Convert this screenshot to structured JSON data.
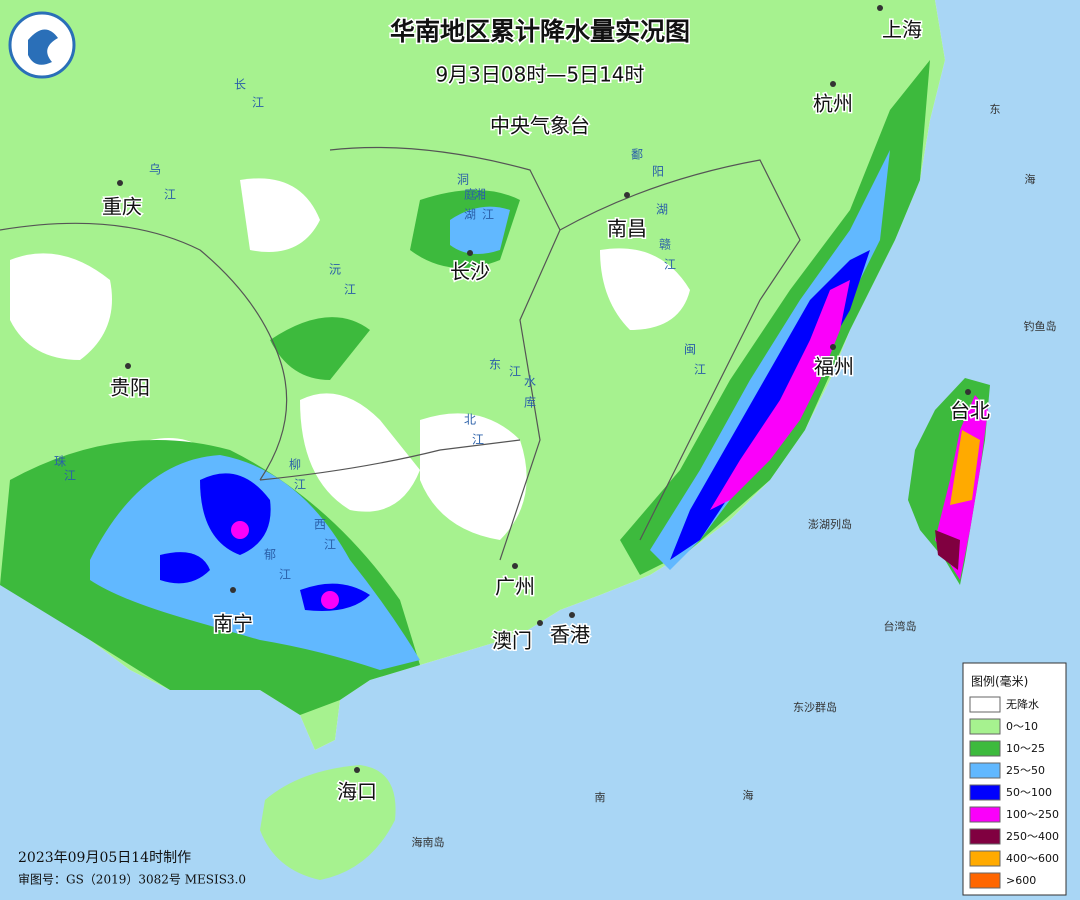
{
  "header": {
    "title": "华南地区累计降水量实况图",
    "subtitle": "9月3日08时—5日14时",
    "agency": "中央气象台"
  },
  "cities": [
    {
      "label": "上海"
    },
    {
      "label": "杭州"
    },
    {
      "label": "重庆"
    },
    {
      "label": "长沙"
    },
    {
      "label": "南昌"
    },
    {
      "label": "福州"
    },
    {
      "label": "贵阳"
    },
    {
      "label": "台北"
    },
    {
      "label": "广州"
    },
    {
      "label": "南宁"
    },
    {
      "label": "澳门"
    },
    {
      "label": "香港"
    },
    {
      "label": "海口"
    }
  ],
  "places": [
    {
      "label": "钓鱼岛"
    },
    {
      "label": "澎湖列岛"
    },
    {
      "label": "台湾岛"
    },
    {
      "label": "东沙群岛"
    },
    {
      "label": "海南岛"
    },
    {
      "label": "东"
    },
    {
      "label": "海"
    },
    {
      "label": "南"
    },
    {
      "label": "海"
    }
  ],
  "rivers": [
    {
      "label": "长"
    },
    {
      "label": "江"
    },
    {
      "label": "乌"
    },
    {
      "label": "江"
    },
    {
      "label": "沅"
    },
    {
      "label": "江"
    },
    {
      "label": "湘"
    },
    {
      "label": "江"
    },
    {
      "label": "赣"
    },
    {
      "label": "江"
    },
    {
      "label": "闽"
    },
    {
      "label": "江"
    },
    {
      "label": "西"
    },
    {
      "label": "江"
    },
    {
      "label": "郁"
    },
    {
      "label": "江"
    },
    {
      "label": "柳"
    },
    {
      "label": "江"
    },
    {
      "label": "鄱"
    },
    {
      "label": "阳"
    },
    {
      "label": "湖"
    },
    {
      "label": "洞"
    },
    {
      "label": "庭"
    },
    {
      "label": "湖"
    },
    {
      "label": "东"
    },
    {
      "label": "江"
    },
    {
      "label": "水"
    },
    {
      "label": "库"
    },
    {
      "label": "北"
    },
    {
      "label": "江"
    },
    {
      "label": "珠"
    },
    {
      "label": "江"
    }
  ],
  "legend": {
    "title": "图例(毫米)",
    "items": [
      {
        "label": "无降水",
        "color": "#ffffff"
      },
      {
        "label": "0～10",
        "color": "#a6f28f"
      },
      {
        "label": "10～25",
        "color": "#3dba3d"
      },
      {
        "label": "25～50",
        "color": "#61b8ff"
      },
      {
        "label": "50～100",
        "color": "#0000fe"
      },
      {
        "label": "100～250",
        "color": "#fa00fa"
      },
      {
        "label": "250～400",
        "color": "#800040"
      },
      {
        "label": "400～600",
        "color": "#ffaa00"
      },
      {
        "label": ">600",
        "color": "#ff6600"
      }
    ]
  },
  "footer": {
    "made": "2023年09月05日14时制作",
    "approval": "审图号：GS（2019）3082号 MESIS3.0"
  }
}
